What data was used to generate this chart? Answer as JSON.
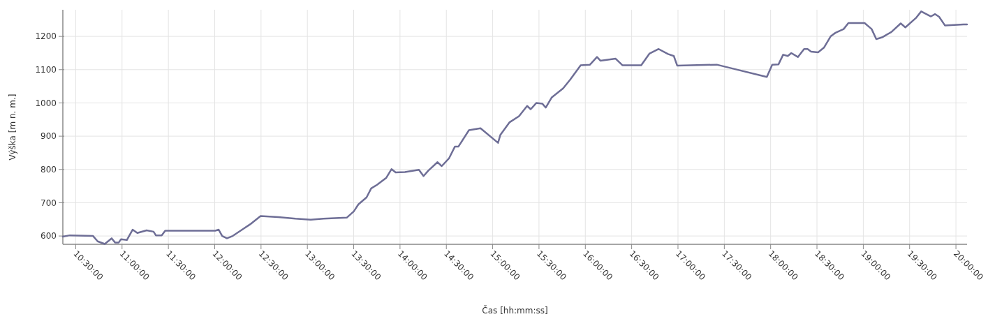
{
  "chart_data": {
    "type": "line",
    "xlabel": "Čas [hh:mm:ss]",
    "ylabel": "Výška [m n. m.]",
    "xlim": [
      10.361,
      20.12
    ],
    "ylim": [
      575,
      1280
    ],
    "xticks": [
      {
        "value": 10.5,
        "label": "10:30:00"
      },
      {
        "value": 11,
        "label": "11:00:00"
      },
      {
        "value": 11.5,
        "label": "11:30:00"
      },
      {
        "value": 12,
        "label": "12:00:00"
      },
      {
        "value": 12.5,
        "label": "12:30:00"
      },
      {
        "value": 13,
        "label": "13:00:00"
      },
      {
        "value": 13.5,
        "label": "13:30:00"
      },
      {
        "value": 14,
        "label": "14:00:00"
      },
      {
        "value": 14.5,
        "label": "14:30:00"
      },
      {
        "value": 15,
        "label": "15:00:00"
      },
      {
        "value": 15.5,
        "label": "15:30:00"
      },
      {
        "value": 16,
        "label": "16:00:00"
      },
      {
        "value": 16.5,
        "label": "16:30:00"
      },
      {
        "value": 17,
        "label": "17:00:00"
      },
      {
        "value": 17.5,
        "label": "17:30:00"
      },
      {
        "value": 18,
        "label": "18:00:00"
      },
      {
        "value": 18.5,
        "label": "18:30:00"
      },
      {
        "value": 19,
        "label": "19:00:00"
      },
      {
        "value": 19.5,
        "label": "19:30:00"
      },
      {
        "value": 20,
        "label": "20:00:00"
      }
    ],
    "yticks": [
      600,
      700,
      800,
      900,
      1000,
      1100,
      1200
    ],
    "grid": true,
    "marker": "none",
    "line_style": "solid",
    "series": [
      {
        "color": "#6e6e96",
        "x": [
          10.361,
          10.436,
          10.687,
          10.737,
          10.813,
          10.888,
          10.926,
          10.963,
          10.988,
          11.052,
          11.076,
          11.114,
          11.165,
          11.265,
          11.34,
          11.365,
          11.428,
          11.466,
          12.006,
          12.043,
          12.081,
          12.132,
          12.194,
          12.307,
          12.382,
          12.495,
          12.684,
          12.872,
          13.036,
          13.174,
          13.425,
          13.501,
          13.551,
          13.639,
          13.689,
          13.752,
          13.852,
          13.908,
          13.953,
          14.053,
          14.204,
          14.254,
          14.304,
          14.405,
          14.45,
          14.53,
          14.593,
          14.631,
          14.744,
          14.869,
          15.058,
          15.083,
          15.183,
          15.284,
          15.372,
          15.41,
          15.472,
          15.535,
          15.573,
          15.636,
          15.761,
          15.837,
          15.95,
          16.05,
          16.126,
          16.163,
          16.327,
          16.402,
          16.603,
          16.691,
          16.791,
          16.892,
          16.955,
          16.992,
          17.419,
          17.595,
          17.959,
          18.017,
          18.085,
          18.135,
          18.185,
          18.223,
          18.294,
          18.361,
          18.399,
          18.437,
          18.512,
          18.575,
          18.65,
          18.701,
          18.788,
          18.839,
          19.014,
          19.09,
          19.14,
          19.202,
          19.303,
          19.404,
          19.454,
          19.567,
          19.625,
          19.73,
          19.775,
          19.818,
          19.881,
          20.082,
          20.119
        ],
        "values": [
          598,
          602,
          600,
          584,
          576,
          593,
          580,
          580,
          590,
          588,
          600,
          619,
          609,
          617,
          613,
          602,
          602,
          616,
          616,
          619,
          600,
          593,
          600,
          621,
          635,
          660,
          657,
          652,
          649,
          652,
          655,
          674,
          695,
          716,
          743,
          754,
          775,
          801,
          791,
          792,
          799,
          780,
          796,
          822,
          810,
          834,
          869,
          869,
          918,
          924,
          880,
          904,
          942,
          960,
          991,
          981,
          1000,
          998,
          986,
          1016,
          1044,
          1070,
          1113,
          1115,
          1138,
          1127,
          1133,
          1113,
          1113,
          1148,
          1162,
          1147,
          1141,
          1112,
          1115,
          1103,
          1078,
          1115,
          1116,
          1145,
          1141,
          1150,
          1138,
          1162,
          1162,
          1154,
          1152,
          1166,
          1201,
          1211,
          1222,
          1240,
          1240,
          1222,
          1192,
          1197,
          1213,
          1239,
          1227,
          1255,
          1275,
          1260,
          1267,
          1259,
          1233,
          1236,
          1236
        ]
      }
    ]
  }
}
